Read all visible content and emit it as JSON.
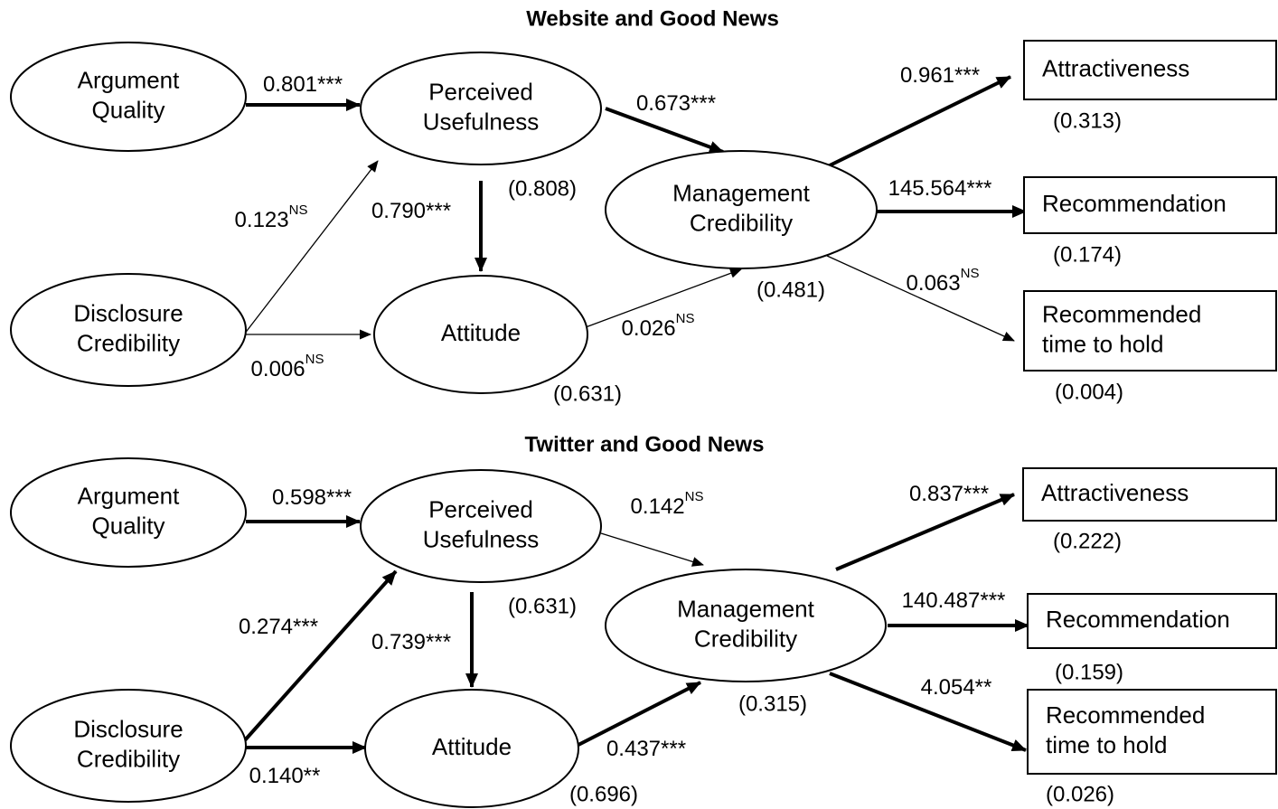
{
  "panels": [
    {
      "title": "Website and Good News",
      "nodes": [
        {
          "label": [
            "Argument",
            "Quality"
          ]
        },
        {
          "label": [
            "Perceived",
            "Usefulness"
          ]
        },
        {
          "label": [
            "Disclosure",
            "Credibility"
          ]
        },
        {
          "label": [
            "Attitude"
          ]
        },
        {
          "label": [
            "Management",
            "Credibility"
          ]
        },
        {
          "label": [
            "Attractiveness"
          ]
        },
        {
          "label": [
            "Recommendation"
          ]
        },
        {
          "label": [
            "Recommended",
            "time to hold"
          ]
        }
      ],
      "paths": [
        {
          "coef": "0.801***"
        },
        {
          "coef": "0.123",
          "sig": "NS"
        },
        {
          "coef": "0.006",
          "sig": "NS"
        },
        {
          "coef": "0.790***"
        },
        {
          "coef": "0.673***"
        },
        {
          "coef": "0.026",
          "sig": "NS"
        },
        {
          "coef": "0.961***"
        },
        {
          "coef": "145.564***"
        },
        {
          "coef": "0.063",
          "sig": "NS"
        }
      ],
      "r_squared": [
        "(0.808)",
        "(0.631)",
        "(0.481)",
        "(0.313)",
        "(0.174)",
        "(0.004)"
      ]
    },
    {
      "title": "Twitter and Good News",
      "nodes": [
        {
          "label": [
            "Argument",
            "Quality"
          ]
        },
        {
          "label": [
            "Perceived",
            "Usefulness"
          ]
        },
        {
          "label": [
            "Disclosure",
            "Credibility"
          ]
        },
        {
          "label": [
            "Attitude"
          ]
        },
        {
          "label": [
            "Management",
            "Credibility"
          ]
        },
        {
          "label": [
            "Attractiveness"
          ]
        },
        {
          "label": [
            "Recommendation"
          ]
        },
        {
          "label": [
            "Recommended",
            "time to hold"
          ]
        }
      ],
      "paths": [
        {
          "coef": "0.598***"
        },
        {
          "coef": "0.274***"
        },
        {
          "coef": "0.140**"
        },
        {
          "coef": "0.739***"
        },
        {
          "coef": "0.142",
          "sig": "NS"
        },
        {
          "coef": "0.437***"
        },
        {
          "coef": "0.837***"
        },
        {
          "coef": "140.487***"
        },
        {
          "coef": "4.054**"
        }
      ],
      "r_squared": [
        "(0.631)",
        "(0.696)",
        "(0.315)",
        "(0.222)",
        "(0.159)",
        "(0.026)"
      ]
    }
  ]
}
